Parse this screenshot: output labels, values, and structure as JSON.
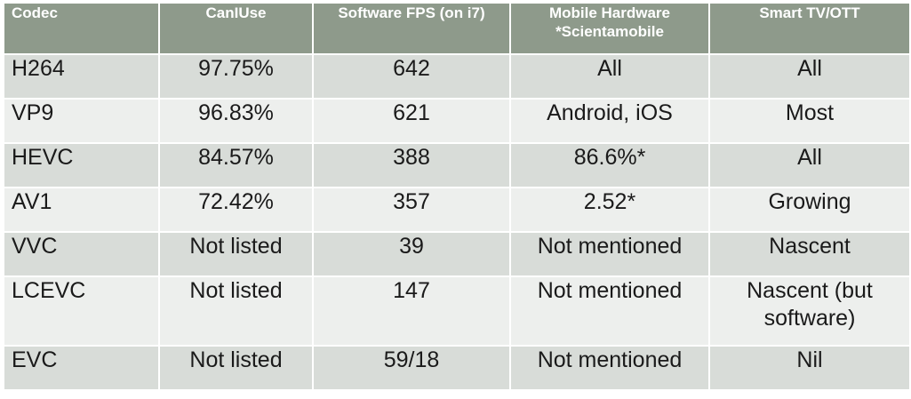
{
  "table": {
    "headers": [
      "Codec",
      "CanIUse",
      "Software FPS (on i7)",
      "Mobile Hardware *Scientamobile",
      "Smart TV/OTT"
    ],
    "header_mobile_line1": "Mobile Hardware",
    "header_mobile_line2": "*Scientamobile",
    "rows": [
      [
        "H264",
        "97.75%",
        "642",
        "All",
        "All"
      ],
      [
        "VP9",
        "96.83%",
        "621",
        "Android, iOS",
        "Most"
      ],
      [
        "HEVC",
        "84.57%",
        "388",
        "86.6%*",
        "All"
      ],
      [
        "AV1",
        "72.42%",
        "357",
        "2.52*",
        "Growing"
      ],
      [
        "VVC",
        "Not listed",
        "39",
        "Not mentioned",
        "Nascent"
      ],
      [
        "LCEVC",
        "Not listed",
        "147",
        "Not mentioned",
        "Nascent (but software)"
      ],
      [
        "EVC",
        "Not listed",
        "59/18",
        "Not mentioned",
        "Nil"
      ]
    ]
  },
  "colors": {
    "header_bg": "#8e9a8b",
    "header_text": "#ffffff",
    "row_odd": "#d8dcd8",
    "row_even": "#edefed",
    "cell_text": "#1a1a1a"
  }
}
